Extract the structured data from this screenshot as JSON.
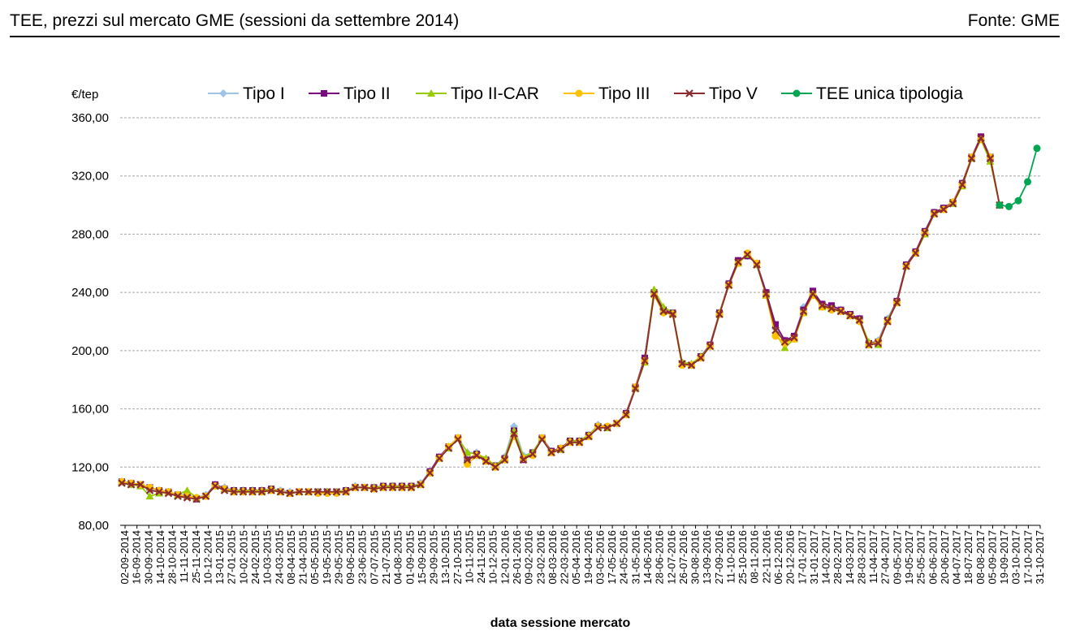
{
  "header": {
    "title": "TEE, prezzi sul mercato GME (sessioni da settembre 2014)",
    "source": "Fonte: GME"
  },
  "chart_data": {
    "type": "line",
    "ylabel": "€/tep",
    "xlabel": "data sessione  mercato",
    "ylim": [
      80,
      360
    ],
    "yticks": [
      "80,00",
      "120,00",
      "160,00",
      "200,00",
      "240,00",
      "280,00",
      "320,00",
      "360,00"
    ],
    "grid": true,
    "legend_position": "top",
    "x_tick_labels": [
      "02-09-2014",
      "16-09-2014",
      "30-09-2014",
      "14-10-2014",
      "28-10-2014",
      "11-11-2014",
      "25-11-2014",
      "10-12-2014",
      "13-01-2015",
      "27-01-2015",
      "10-02-2015",
      "24-02-2015",
      "10-03-2015",
      "24-03-2015",
      "08-04-2015",
      "21-04-2015",
      "05-05-2015",
      "19-05-2015",
      "29-05-2015",
      "09-06-2015",
      "23-06-2015",
      "07-07-2015",
      "21-07-2015",
      "04-08-2015",
      "01-09-2015",
      "15-09-2015",
      "29-09-2015",
      "13-10-2015",
      "27-10-2015",
      "10-11-2015",
      "24-11-2015",
      "10-12-2015",
      "12-01-2016",
      "26-01-2016",
      "09-02-2016",
      "23-02-2016",
      "08-03-2016",
      "22-03-2016",
      "05-04-2016",
      "19-04-2016",
      "03-05-2016",
      "17-05-2016",
      "24-05-2016",
      "31-05-2016",
      "14-06-2016",
      "28-06-2016",
      "12-07-2016",
      "26-07-2016",
      "30-08-2016",
      "13-09-2016",
      "27-09-2016",
      "11-10-2016",
      "25-10-2016",
      "08-11-2016",
      "22-11-2016",
      "06-12-2016",
      "20-12-2016",
      "17-01-2017",
      "31-01-2017",
      "14-02-2017",
      "28-02-2017",
      "14-03-2017",
      "28-03-2017",
      "11-04-2017",
      "27-04-2017",
      "09-05-2017",
      "19-05-2017",
      "25-05-2017",
      "06-06-2017",
      "20-06-2017",
      "04-07-2017",
      "18-07-2017",
      "08-08-2017",
      "05-09-2017",
      "19-09-2017",
      "03-10-2017",
      "17-10-2017",
      "31-10-2017"
    ],
    "series": [
      {
        "name": "Tipo I",
        "color": "#9dc3e6",
        "marker": "diamond",
        "offset": 0,
        "values": [
          110,
          108,
          108,
          105,
          104,
          103,
          101,
          101,
          99,
          101,
          108,
          106,
          104,
          104,
          104,
          104,
          105,
          104,
          103,
          103,
          103,
          103,
          103,
          103,
          104,
          107,
          106,
          106,
          107,
          107,
          107,
          107,
          109,
          117,
          127,
          134,
          140,
          130,
          130,
          125,
          121,
          127,
          148,
          128,
          130,
          140,
          131,
          133,
          138,
          138,
          142,
          149,
          148,
          150,
          157,
          175,
          195,
          240,
          228,
          226,
          192,
          190,
          196,
          204,
          226,
          246,
          262,
          265,
          260,
          240,
          215,
          207,
          210,
          230,
          238,
          232,
          230,
          228,
          224,
          222,
          205,
          207,
          222,
          234,
          259,
          268,
          282,
          295,
          298,
          302,
          315,
          333,
          345,
          333,
          300
        ]
      },
      {
        "name": "Tipo II",
        "color": "#7b0a82",
        "marker": "square",
        "offset": 0,
        "values": [
          110,
          109,
          108,
          106,
          104,
          103,
          101,
          100,
          98,
          100,
          108,
          105,
          104,
          104,
          104,
          104,
          105,
          103,
          102,
          103,
          103,
          103,
          103,
          103,
          104,
          106,
          106,
          106,
          107,
          107,
          107,
          107,
          108,
          117,
          127,
          134,
          140,
          125,
          129,
          125,
          121,
          126,
          145,
          125,
          130,
          140,
          131,
          133,
          138,
          138,
          142,
          148,
          147,
          150,
          157,
          175,
          195,
          240,
          228,
          226,
          191,
          190,
          196,
          204,
          226,
          246,
          262,
          265,
          260,
          240,
          218,
          207,
          210,
          228,
          241,
          232,
          231,
          228,
          225,
          222,
          205,
          206,
          221,
          234,
          259,
          268,
          282,
          295,
          298,
          302,
          315,
          333,
          347,
          333,
          300
        ]
      },
      {
        "name": "Tipo II-CAR",
        "color": "#99cc00",
        "marker": "triangle",
        "offset": 0,
        "values": [
          110,
          108,
          107,
          100,
          102,
          103,
          101,
          104,
          99,
          100,
          107,
          105,
          104,
          104,
          104,
          104,
          105,
          103,
          102,
          103,
          103,
          103,
          103,
          103,
          104,
          106,
          106,
          106,
          107,
          107,
          107,
          107,
          108,
          116,
          126,
          133,
          140,
          130,
          129,
          126,
          121,
          126,
          145,
          127,
          130,
          140,
          130,
          132,
          138,
          138,
          142,
          148,
          147,
          150,
          156,
          174,
          192,
          242,
          230,
          226,
          192,
          191,
          196,
          203,
          226,
          245,
          260,
          266,
          259,
          238,
          212,
          202,
          208,
          226,
          239,
          230,
          229,
          227,
          224,
          221,
          206,
          204,
          221,
          233,
          258,
          267,
          280,
          294,
          297,
          301,
          313,
          332,
          345,
          330,
          300
        ]
      },
      {
        "name": "Tipo III",
        "color": "#ffc000",
        "marker": "circle",
        "offset": 0,
        "values": [
          110,
          109,
          108,
          106,
          104,
          103,
          101,
          100,
          99,
          100,
          107,
          105,
          103,
          103,
          103,
          103,
          104,
          103,
          102,
          103,
          103,
          102,
          102,
          102,
          103,
          106,
          106,
          105,
          106,
          106,
          106,
          106,
          108,
          116,
          126,
          134,
          140,
          122,
          128,
          124,
          120,
          125,
          141,
          126,
          128,
          140,
          130,
          133,
          137,
          137,
          141,
          148,
          148,
          150,
          156,
          175,
          193,
          238,
          226,
          225,
          190,
          190,
          195,
          203,
          225,
          245,
          260,
          267,
          260,
          238,
          210,
          205,
          208,
          226,
          238,
          230,
          228,
          227,
          224,
          220,
          204,
          206,
          220,
          233,
          258,
          267,
          281,
          294,
          297,
          302,
          314,
          333,
          345,
          333,
          300
        ]
      },
      {
        "name": "Tipo V",
        "color": "#8b2c2c",
        "marker": "x",
        "offset": 0,
        "values": [
          109,
          108,
          108,
          104,
          103,
          102,
          100,
          99,
          98,
          100,
          107,
          104,
          103,
          103,
          103,
          103,
          104,
          103,
          102,
          103,
          103,
          103,
          103,
          103,
          103,
          106,
          106,
          105,
          106,
          106,
          106,
          106,
          108,
          116,
          126,
          133,
          139,
          125,
          128,
          124,
          120,
          125,
          143,
          125,
          129,
          139,
          130,
          132,
          137,
          137,
          141,
          147,
          147,
          150,
          156,
          174,
          193,
          239,
          227,
          225,
          191,
          190,
          195,
          203,
          225,
          245,
          261,
          266,
          259,
          239,
          214,
          206,
          209,
          227,
          239,
          231,
          229,
          227,
          224,
          221,
          204,
          205,
          220,
          233,
          258,
          267,
          281,
          294,
          297,
          301,
          314,
          332,
          346,
          332,
          300
        ]
      },
      {
        "name": "TEE unica tipologia",
        "color": "#00a651",
        "marker": "circle",
        "offset": 94,
        "values": [
          300,
          299,
          303,
          316,
          339
        ]
      }
    ]
  }
}
